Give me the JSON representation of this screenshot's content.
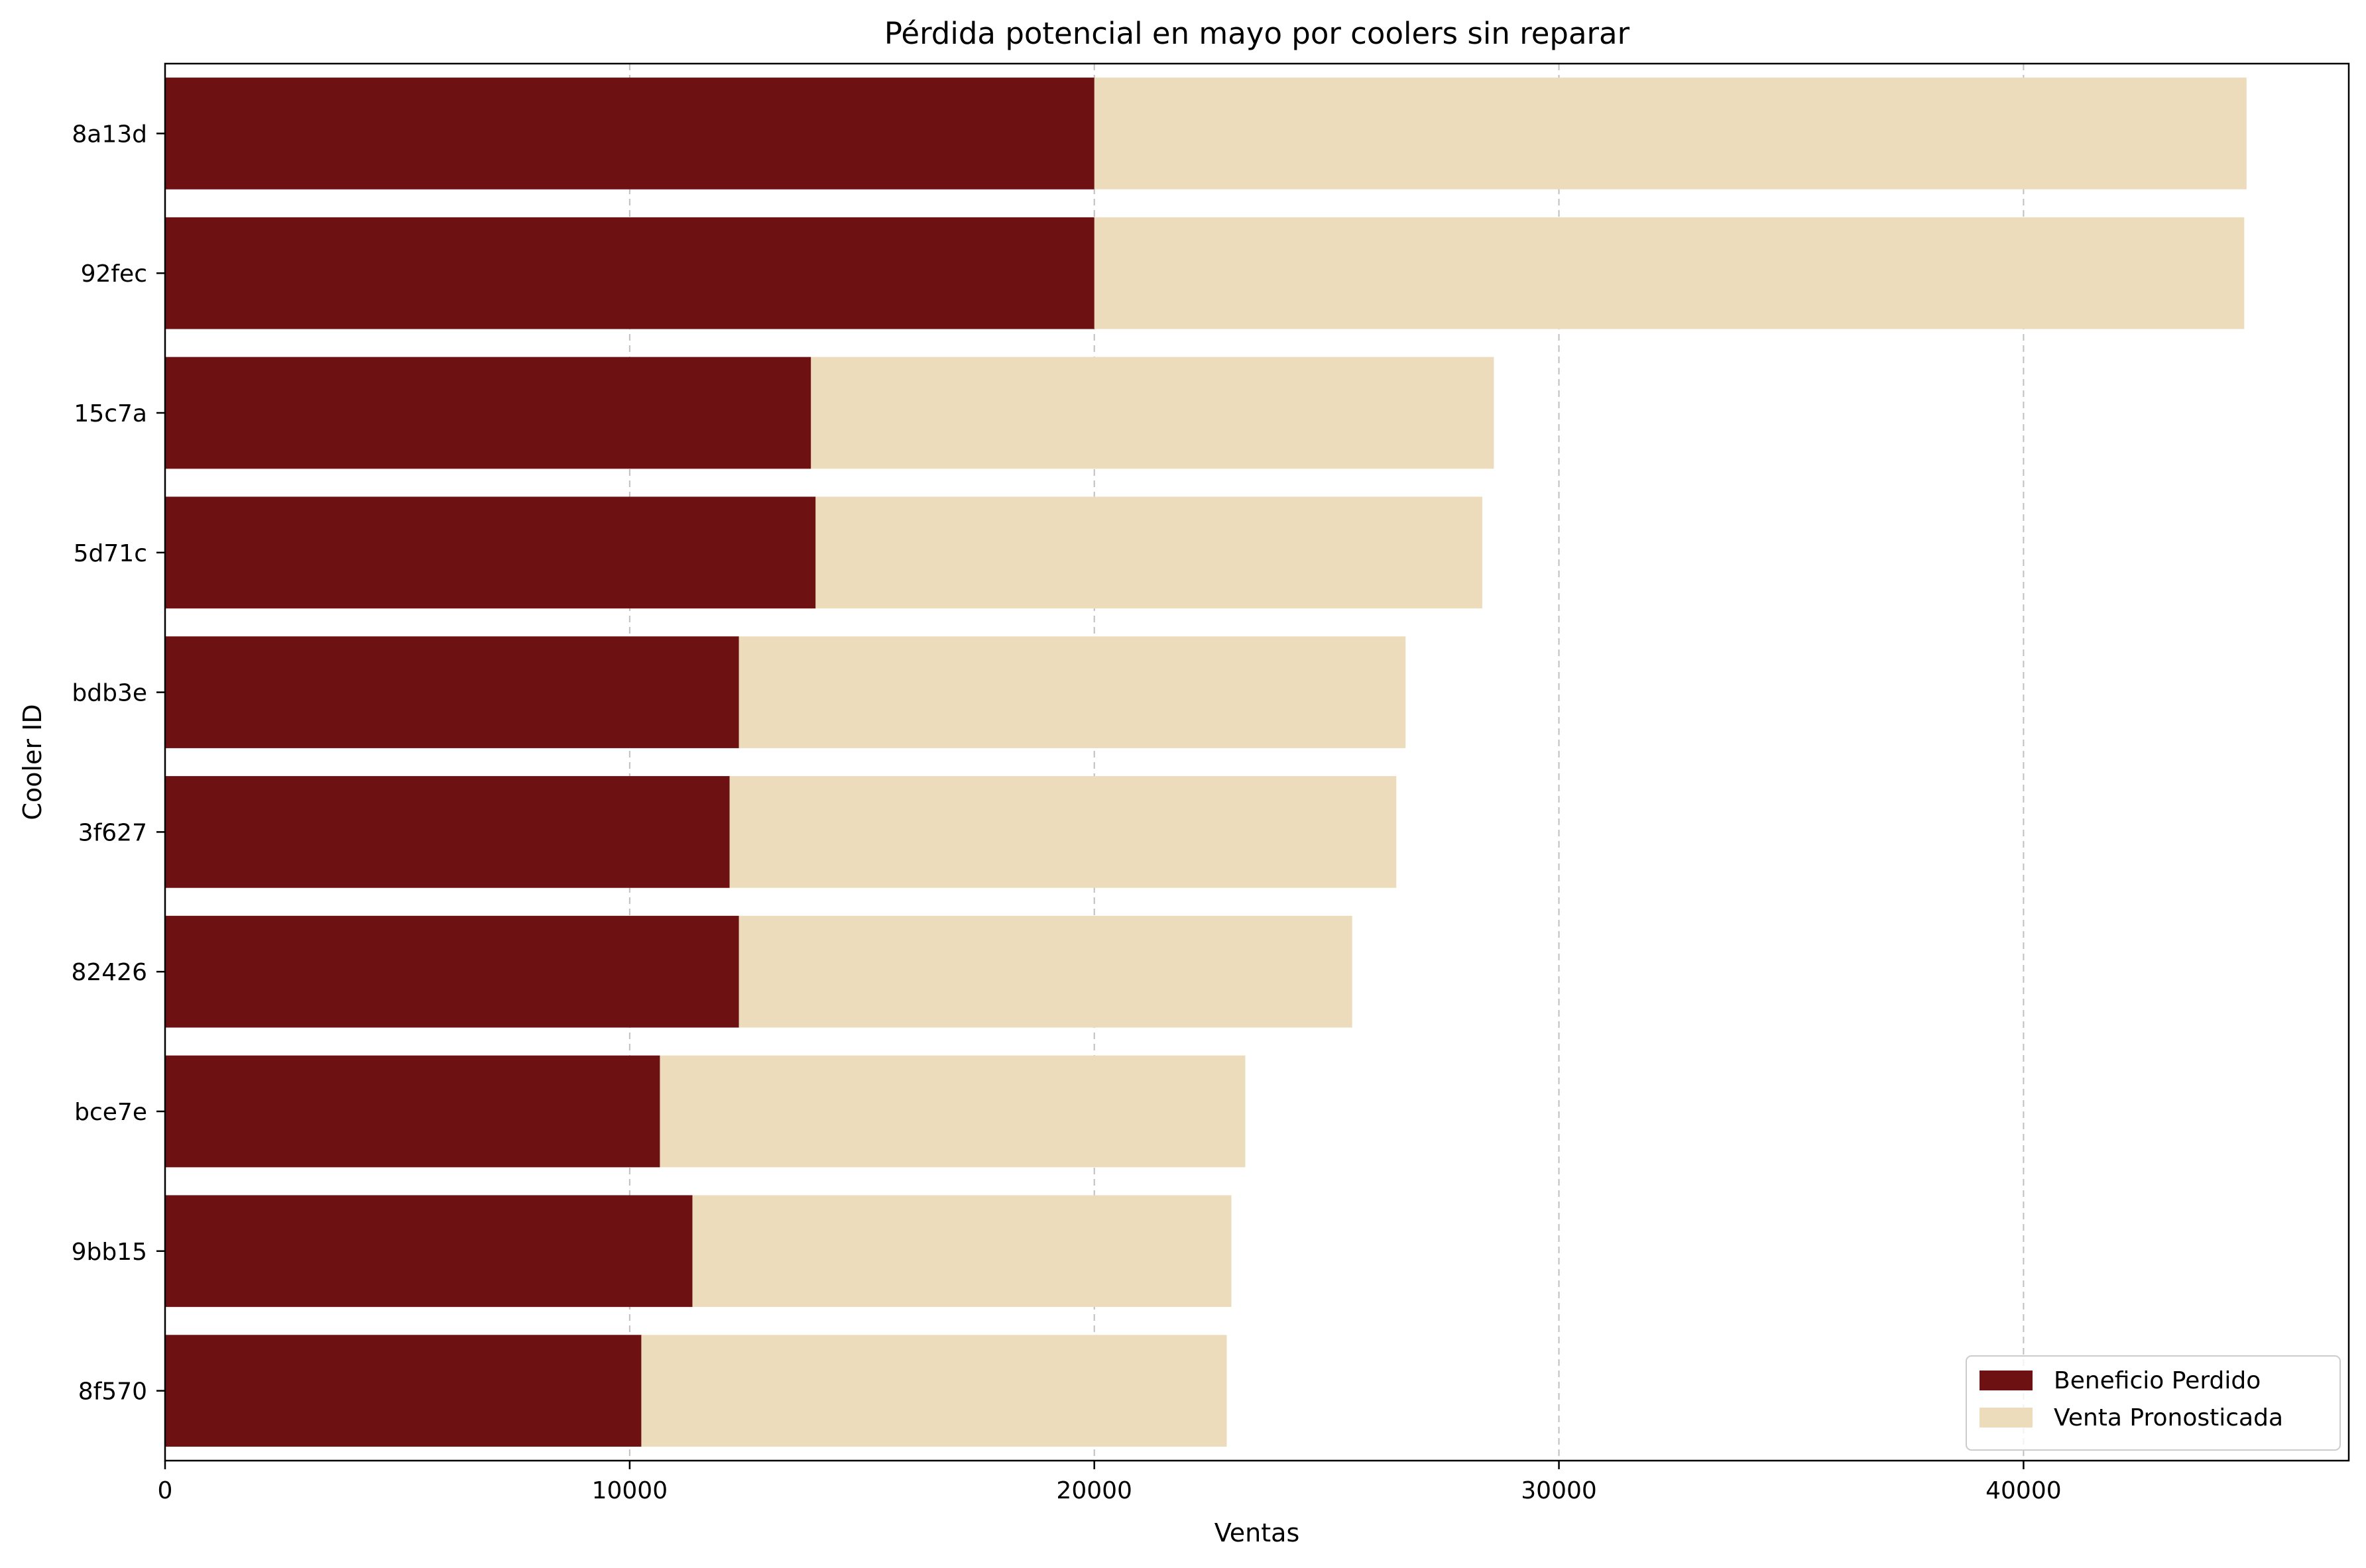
{
  "chart_data": {
    "type": "bar",
    "orientation": "horizontal",
    "stacked": false,
    "title": "Pérdida potencial en mayo por coolers sin reparar",
    "xlabel": "Ventas",
    "ylabel": "Cooler ID",
    "xlim": [
      0,
      47000
    ],
    "xticks": [
      0,
      10000,
      20000,
      30000,
      40000
    ],
    "xtick_labels": [
      "0",
      "10000",
      "20000",
      "30000",
      "40000"
    ],
    "grid": "vertical dashed",
    "legend_position": "bottom-right",
    "categories": [
      "8a13d",
      "92fec",
      "15c7a",
      "5d71c",
      "bdb3e",
      "3f627",
      "82426",
      "bce7e",
      "9bb15",
      "8f570"
    ],
    "series": [
      {
        "name": "Venta Pronosticada",
        "color": "#ecdcbc",
        "values": [
          44800,
          44750,
          28600,
          28350,
          26700,
          26500,
          25550,
          23250,
          22950,
          22850
        ]
      },
      {
        "name": "Beneficio Perdido",
        "color": "#6e1113",
        "values": [
          20000,
          20000,
          13900,
          14000,
          12350,
          12150,
          12350,
          10650,
          11350,
          10250
        ]
      }
    ],
    "legend_order": [
      "Beneficio Perdido",
      "Venta Pronosticada"
    ]
  }
}
